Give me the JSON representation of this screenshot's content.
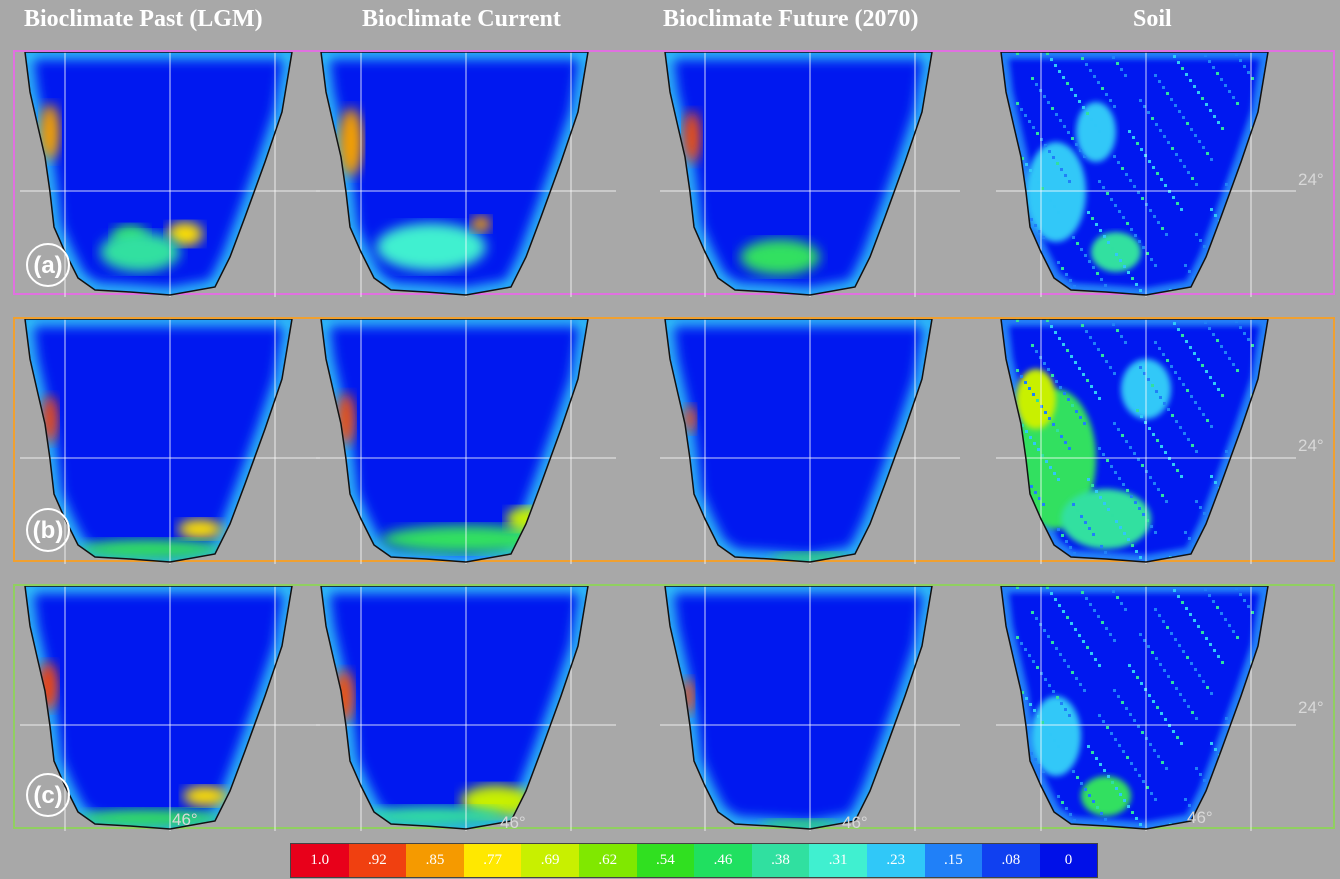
{
  "columns": [
    "Bioclimate Past (LGM)",
    "Bioclimate Current",
    "Bioclimate Future (2070)",
    "Soil"
  ],
  "rows": [
    {
      "label": "(a)",
      "border_color": "#e070e0"
    },
    {
      "label": "(b)",
      "border_color": "#f0a030"
    },
    {
      "label": "(c)",
      "border_color": "#90d060"
    }
  ],
  "lat_labels": {
    "north": "24°",
    "south": "46°"
  },
  "legend": [
    {
      "label": "1.0",
      "color": "#e8001a"
    },
    {
      "label": ".92",
      "color": "#f04010"
    },
    {
      "label": ".85",
      "color": "#f59a00"
    },
    {
      "label": ".77",
      "color": "#ffe800"
    },
    {
      "label": ".69",
      "color": "#c8f000"
    },
    {
      "label": ".62",
      "color": "#80e800"
    },
    {
      "label": ".54",
      "color": "#30e020"
    },
    {
      "label": ".46",
      "color": "#20e060"
    },
    {
      "label": ".38",
      "color": "#30e0a0"
    },
    {
      "label": ".31",
      "color": "#40f0d0"
    },
    {
      "label": ".23",
      "color": "#30c8f8"
    },
    {
      "label": ".15",
      "color": "#2080f8"
    },
    {
      "label": ".08",
      "color": "#1040f0"
    },
    {
      "label": "0",
      "color": "#0010e8"
    }
  ]
}
